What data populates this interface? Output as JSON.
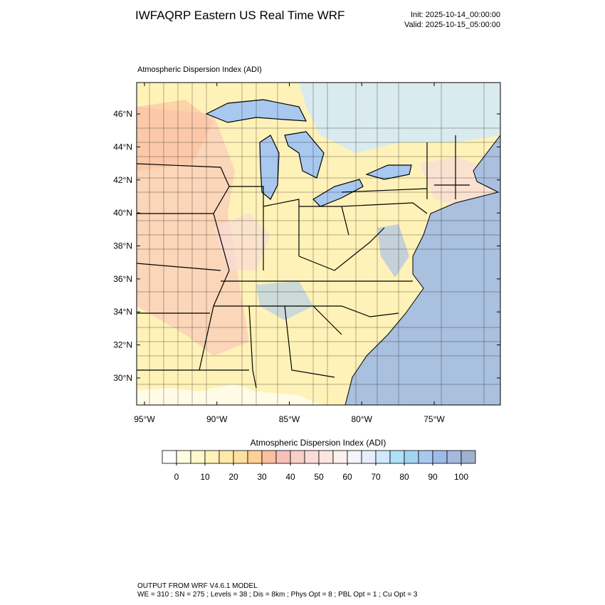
{
  "header": {
    "title": "IWFAQRP Eastern US Real Time WRF",
    "init": "Init: 2025-10-14_00:00:00",
    "valid": "Valid: 2025-10-15_05:00:00"
  },
  "map": {
    "label": "Atmospheric Dispersion Index   (ADI)",
    "lonlim": [
      -95.54,
      -70.43
    ],
    "latlim": [
      28.36,
      47.9
    ],
    "lonticks": [
      {
        "value": -95,
        "label": "95°W"
      },
      {
        "value": -90,
        "label": "90°W"
      },
      {
        "value": -85,
        "label": "85°W"
      },
      {
        "value": -80,
        "label": "80°W"
      },
      {
        "value": -75,
        "label": "75°W"
      }
    ],
    "latticks": [
      {
        "value": 30,
        "label": "30°N"
      },
      {
        "value": 32,
        "label": "32°N"
      },
      {
        "value": 34,
        "label": "34°N"
      },
      {
        "value": 36,
        "label": "36°N"
      },
      {
        "value": 38,
        "label": "38°N"
      },
      {
        "value": 40,
        "label": "40°N"
      },
      {
        "value": 42,
        "label": "42°N"
      },
      {
        "value": 44,
        "label": "44°N"
      },
      {
        "value": 46,
        "label": "46°N"
      }
    ]
  },
  "colorbar": {
    "title": "Atmospheric Dispersion Index  (ADI)",
    "lim": [
      -5,
      105
    ],
    "colors": [
      "#ffffff",
      "#fffde0",
      "#fff8cc",
      "#fff2b8",
      "#ffe9a8",
      "#ffe0a0",
      "#ffcf96",
      "#fbbfa0",
      "#f8c0b8",
      "#f9cfc8",
      "#fadcd6",
      "#fce6e2",
      "#fdf0ee",
      "#f4f4fb",
      "#e6eefb",
      "#cfe8fb",
      "#aee0f8",
      "#a2d4f2",
      "#a9c8ef",
      "#9fbbec",
      "#a5b9df",
      "#9fb2cf"
    ],
    "ticks": [
      0,
      10,
      20,
      30,
      40,
      50,
      60,
      70,
      80,
      90,
      100
    ]
  },
  "footer": {
    "line1": "OUTPUT FROM WRF V4.6.1 MODEL",
    "line2": "WE = 310 ; SN = 275 ; Levels = 38 ; Dis = 8km ; Phys Opt = 8 ; PBL Opt = 1 ; Cu Opt = 3"
  }
}
